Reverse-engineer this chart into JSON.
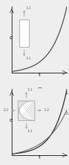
{
  "background_color": "#eeeeee",
  "panel_a": {
    "curve_color": "#444444",
    "curve_lw": 0.9,
    "xlabel": "t",
    "ylabel": "σ",
    "label_fontsize": 5,
    "arrow_color": "#aaaaaa",
    "arrow_label": "1-1"
  },
  "panel_b": {
    "curve1_color": "#222222",
    "curve2_color": "#666666",
    "curve1_lw": 0.9,
    "curve2_lw": 0.8,
    "xlabel": "t",
    "ylabel": "σ",
    "label_fontsize": 5,
    "label_1_1": "1-1",
    "label_2_2": "2-2"
  }
}
